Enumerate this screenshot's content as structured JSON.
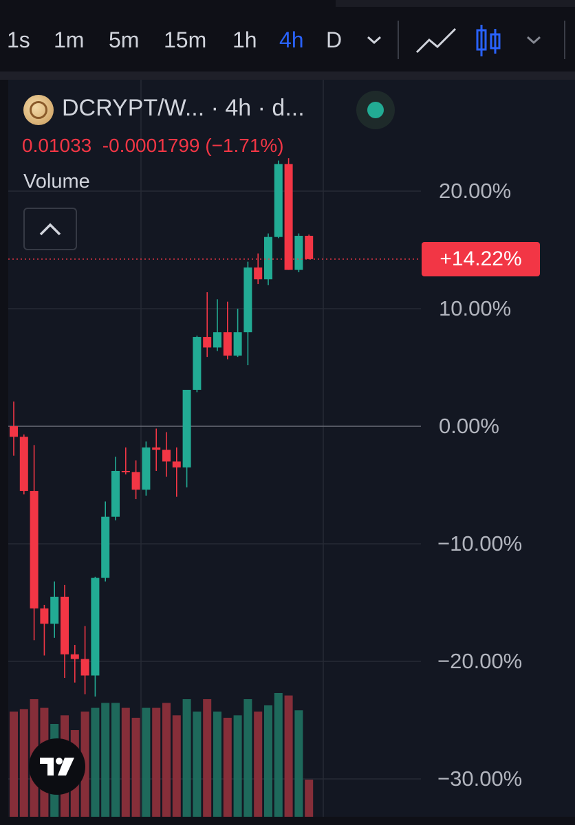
{
  "toolbar": {
    "timeframes": [
      "1s",
      "1m",
      "5m",
      "15m",
      "1h",
      "4h",
      "D"
    ],
    "active_timeframe": "4h",
    "icons": [
      "chevron-down-icon",
      "line-chart-icon",
      "candlestick-icon",
      "chevron-down-icon"
    ]
  },
  "legend": {
    "title": "DCRYPT/W...  · 4h · d...",
    "price": "0.01033",
    "change": "-0.0001799 (−1.71%)",
    "volume_label": "Volume",
    "status_icon": "live-dot-icon"
  },
  "price_badge": "+14.22%",
  "colors": {
    "up": "#22ab94",
    "down": "#f23645",
    "background": "#131722",
    "active": "#2962ff"
  },
  "chart_data": {
    "type": "candlestick",
    "y_unit": "%",
    "ylim": [
      -32,
      24
    ],
    "y_ticks": [
      "20.00%",
      "10.00%",
      "0.00%",
      "−10.00%",
      "−20.00%",
      "−30.00%"
    ],
    "y_tick_values": [
      20,
      10,
      0,
      -10,
      -20,
      -30
    ],
    "last_value": 14.22,
    "candles": [
      {
        "o": 0.0,
        "h": 2.1,
        "l": -2.5,
        "c": -0.9
      },
      {
        "o": -0.9,
        "h": -0.7,
        "l": -5.8,
        "c": -5.5
      },
      {
        "o": -5.5,
        "h": -1.6,
        "l": -18.2,
        "c": -15.5
      },
      {
        "o": -15.5,
        "h": -15.2,
        "l": -19.5,
        "c": -16.8
      },
      {
        "o": -16.8,
        "h": -13.2,
        "l": -18.0,
        "c": -14.5
      },
      {
        "o": -14.5,
        "h": -13.5,
        "l": -21.4,
        "c": -19.4
      },
      {
        "o": -19.4,
        "h": -18.6,
        "l": -21.8,
        "c": -19.8
      },
      {
        "o": -19.8,
        "h": -17.0,
        "l": -22.8,
        "c": -21.2
      },
      {
        "o": -21.2,
        "h": -12.8,
        "l": -23.0,
        "c": -12.9
      },
      {
        "o": -12.9,
        "h": -6.4,
        "l": -13.2,
        "c": -7.7
      },
      {
        "o": -7.7,
        "h": -2.6,
        "l": -8.0,
        "c": -3.8
      },
      {
        "o": -3.8,
        "h": -1.8,
        "l": -4.1,
        "c": -3.9
      },
      {
        "o": -3.9,
        "h": -2.9,
        "l": -6.2,
        "c": -5.4
      },
      {
        "o": -5.4,
        "h": -1.3,
        "l": -5.9,
        "c": -1.8
      },
      {
        "o": -1.8,
        "h": -0.2,
        "l": -3.8,
        "c": -2.0
      },
      {
        "o": -2.0,
        "h": -0.5,
        "l": -4.3,
        "c": -3.0
      },
      {
        "o": -3.0,
        "h": -1.8,
        "l": -6.0,
        "c": -3.5
      },
      {
        "o": -3.5,
        "h": 3.0,
        "l": -5.2,
        "c": 3.1
      },
      {
        "o": 3.1,
        "h": 7.7,
        "l": 2.9,
        "c": 7.6
      },
      {
        "o": 7.6,
        "h": 11.4,
        "l": 5.9,
        "c": 6.7
      },
      {
        "o": 6.7,
        "h": 10.8,
        "l": 6.4,
        "c": 8.0
      },
      {
        "o": 8.0,
        "h": 10.6,
        "l": 5.7,
        "c": 6.0
      },
      {
        "o": 6.0,
        "h": 10.0,
        "l": 5.9,
        "c": 8.0
      },
      {
        "o": 8.0,
        "h": 14.0,
        "l": 5.2,
        "c": 13.5
      },
      {
        "o": 13.5,
        "h": 14.7,
        "l": 12.1,
        "c": 12.5
      },
      {
        "o": 12.5,
        "h": 16.4,
        "l": 12.0,
        "c": 16.1
      },
      {
        "o": 16.1,
        "h": 22.6,
        "l": 16.0,
        "c": 22.3
      },
      {
        "o": 22.3,
        "h": 22.8,
        "l": 13.3,
        "c": 13.3
      },
      {
        "o": 13.3,
        "h": 16.4,
        "l": 13.1,
        "c": 16.2
      },
      {
        "o": 16.2,
        "h": 16.3,
        "l": 14.2,
        "c": 14.22
      }
    ],
    "volume": [
      85,
      87,
      95,
      88,
      75,
      82,
      70,
      85,
      88,
      92,
      92,
      88,
      80,
      88,
      88,
      92,
      82,
      95,
      85,
      95,
      85,
      80,
      82,
      95,
      85,
      90,
      100,
      98,
      86,
      30
    ]
  }
}
